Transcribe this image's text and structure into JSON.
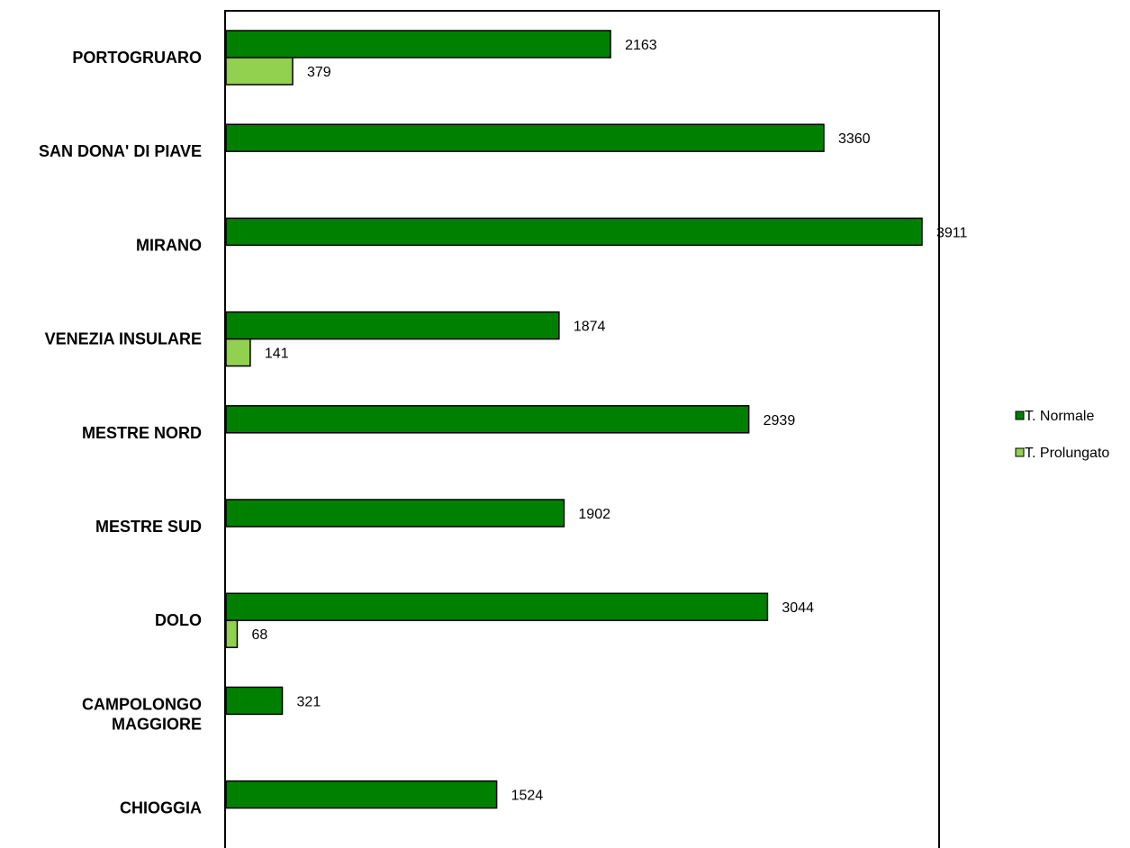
{
  "chart_data": {
    "type": "bar",
    "orientation": "horizontal",
    "title": "",
    "xlabel": "",
    "ylabel": "",
    "xlim": [
      0,
      4000
    ],
    "grid": false,
    "legend_position": "right",
    "categories": [
      "PORTOGRUARO",
      "SAN DONA' DI PIAVE",
      "MIRANO",
      "VENEZIA INSULARE",
      "MESTRE NORD",
      "MESTRE SUD",
      "DOLO",
      "CAMPOLONGO MAGGIORE",
      "CHIOGGIA"
    ],
    "category_lines": [
      [
        "PORTOGRUARO"
      ],
      [
        "SAN DONA' DI PIAVE"
      ],
      [
        "MIRANO"
      ],
      [
        "VENEZIA INSULARE"
      ],
      [
        "MESTRE NORD"
      ],
      [
        "MESTRE SUD"
      ],
      [
        "DOLO"
      ],
      [
        "CAMPOLONGO",
        "MAGGIORE"
      ],
      [
        "CHIOGGIA"
      ]
    ],
    "series": [
      {
        "name": "T. Normale",
        "color": "#008000",
        "values": [
          2163,
          3360,
          3911,
          1874,
          2939,
          1902,
          3044,
          321,
          1524
        ]
      },
      {
        "name": "T. Prolungato",
        "color": "#92d050",
        "values": [
          379,
          null,
          null,
          141,
          null,
          null,
          68,
          null,
          null
        ]
      }
    ]
  }
}
